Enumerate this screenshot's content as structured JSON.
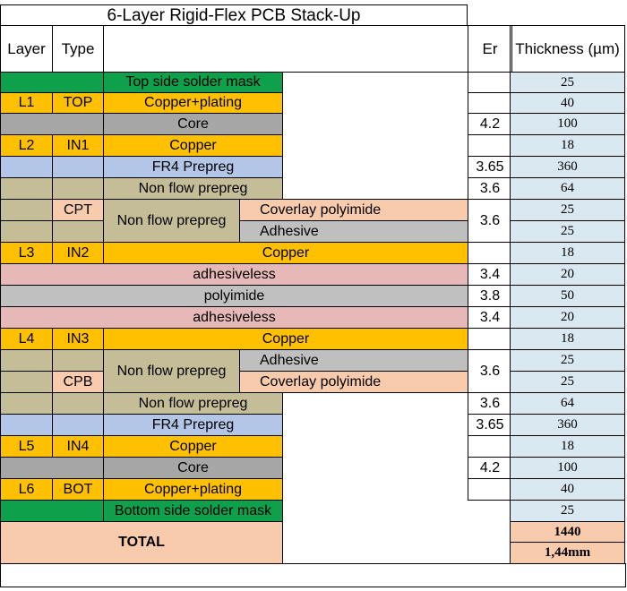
{
  "title": "6-Layer Rigid-Flex PCB Stack-Up",
  "headers": {
    "layer": "Layer",
    "type": "Type",
    "er": "Er",
    "thickness": "Thickness (µm)"
  },
  "colors": {
    "mask": "#0fa04b",
    "copper": "#ffc000",
    "core": "#a6a6a6",
    "prepreg": "#b4c6e7",
    "nonflow": "#c4bd97",
    "coverlay": "#f8cbad",
    "adhesive": "#bfbfbf",
    "adhesiveless": "#e6b8b7",
    "polyimide": "#c0c0c0",
    "thick": "#dae8f2"
  },
  "rows": {
    "top_mask": {
      "material": "Top side solder mask",
      "thickness": "25"
    },
    "l1": {
      "layer": "L1",
      "type": "TOP",
      "material": "Copper+plating",
      "thickness": "40"
    },
    "core1": {
      "material": "Core",
      "er": "4.2",
      "thickness": "100"
    },
    "l2": {
      "layer": "L2",
      "type": "IN1",
      "material": "Copper",
      "thickness": "18"
    },
    "fr4_1": {
      "material": "FR4 Prepreg",
      "er": "3.65",
      "thickness": "360"
    },
    "nf1": {
      "material": "Non flow prepreg",
      "er": "3.6",
      "thickness": "64"
    },
    "cpt": {
      "type": "CPT",
      "nonflow": "Non flow prepreg",
      "coverlay": "Coverlay polyimide",
      "adhesive": "Adhesive",
      "er": "3.6",
      "thickness_coverlay": "25",
      "thickness_adhesive": "25"
    },
    "l3": {
      "layer": "L3",
      "type": "IN2",
      "material": "Copper",
      "thickness": "18"
    },
    "adhl1": {
      "material": "adhesiveless",
      "er": "3.4",
      "thickness": "20"
    },
    "poly": {
      "material": "polyimide",
      "er": "3.8",
      "thickness": "50"
    },
    "adhl2": {
      "material": "adhesiveless",
      "er": "3.4",
      "thickness": "20"
    },
    "l4": {
      "layer": "L4",
      "type": "IN3",
      "material": "Copper",
      "thickness": "18"
    },
    "cpb": {
      "type": "CPB",
      "nonflow": "Non flow prepreg",
      "adhesive": "Adhesive",
      "coverlay": "Coverlay polyimide",
      "er": "3.6",
      "thickness_adhesive": "25",
      "thickness_coverlay": "25"
    },
    "nf2": {
      "material": "Non flow prepreg",
      "er": "3.6",
      "thickness": "64"
    },
    "fr4_2": {
      "material": "FR4 Prepreg",
      "er": "3.65",
      "thickness": "360"
    },
    "l5": {
      "layer": "L5",
      "type": "IN4",
      "material": "Copper",
      "thickness": "18"
    },
    "core2": {
      "material": "Core",
      "er": "4.2",
      "thickness": "100"
    },
    "l6": {
      "layer": "L6",
      "type": "BOT",
      "material": "Copper+plating",
      "thickness": "40"
    },
    "bot_mask": {
      "material": "Bottom side solder mask",
      "thickness": "25"
    }
  },
  "total": {
    "label": "TOTAL",
    "um": "1440",
    "mm": "1,44mm"
  }
}
